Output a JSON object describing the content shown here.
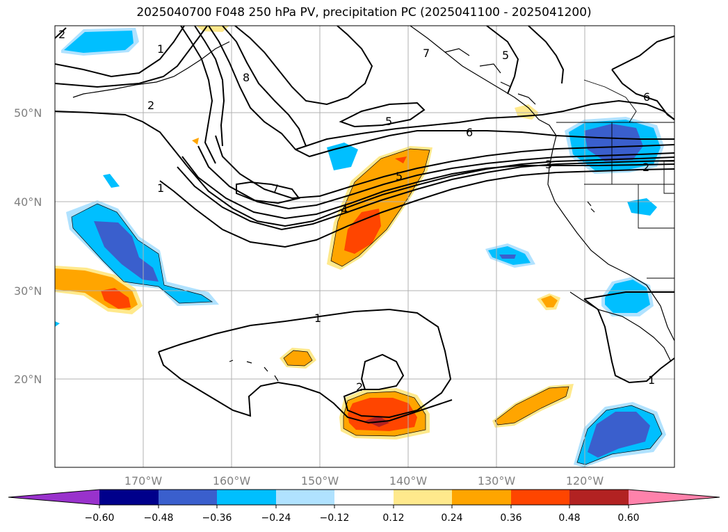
{
  "title": "2025040700 F048 250 hPa PV, precipitation PC (2025041100 - 2025041200)",
  "longitude_ticks": [
    "170°W",
    "160°W",
    "150°W",
    "140°W",
    "130°W",
    "120°W"
  ],
  "latitude_ticks": [
    "50°N",
    "40°N",
    "30°N",
    "20°N"
  ],
  "colorbar": {
    "ticks": [
      "−0.60",
      "−0.48",
      "−0.36",
      "−0.24",
      "−0.12",
      "0.12",
      "0.24",
      "0.36",
      "0.48",
      "0.60"
    ],
    "colors": [
      "#9932cc",
      "#00008b",
      "#3a5fcd",
      "#00bfff",
      "#b0e2ff",
      "#ffffff",
      "#ffe98c",
      "#ffa500",
      "#ff4500",
      "#b22222",
      "#ff82ab"
    ]
  },
  "pv_contour_labels": [
    "2",
    "1",
    "2",
    "8",
    "7",
    "5",
    "5",
    "6",
    "6",
    "7",
    "1",
    "2",
    "3",
    "4",
    "5",
    "1",
    "2",
    "1"
  ]
}
